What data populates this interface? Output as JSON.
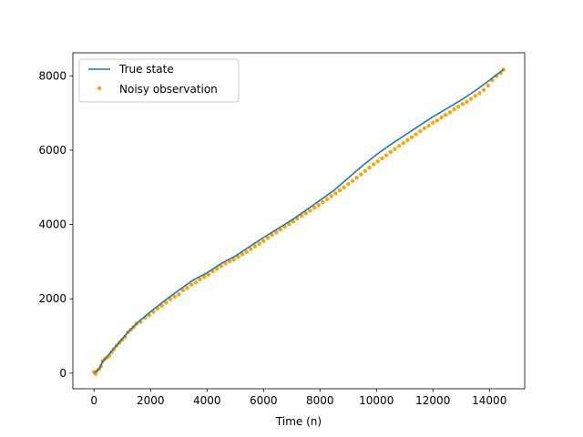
{
  "chart_data": {
    "type": "line",
    "title": "",
    "xlabel": "Time (n)",
    "ylabel": "",
    "xlim": [
      -750,
      15250
    ],
    "ylim": [
      -420,
      8620
    ],
    "xticks": [
      0,
      2000,
      4000,
      6000,
      8000,
      10000,
      12000,
      14000
    ],
    "yticks": [
      0,
      2000,
      4000,
      6000,
      8000
    ],
    "grid": false,
    "legend_position": "upper left",
    "series": [
      {
        "name": "True state",
        "kind": "line",
        "color": "#1f77b4",
        "x": [
          0,
          100,
          200,
          300,
          500,
          800,
          1200,
          1600,
          2000,
          2500,
          3000,
          3500,
          4000,
          4500,
          5000,
          5500,
          6000,
          6500,
          7000,
          7500,
          8000,
          8500,
          9000,
          9500,
          10000,
          10500,
          11000,
          11500,
          12000,
          12500,
          13000,
          13500,
          14000,
          14200,
          14500
        ],
        "y": [
          0,
          60,
          140,
          300,
          480,
          750,
          1100,
          1400,
          1650,
          1950,
          2230,
          2500,
          2700,
          2950,
          3150,
          3400,
          3650,
          3880,
          4120,
          4380,
          4650,
          4920,
          5250,
          5580,
          5880,
          6150,
          6400,
          6650,
          6900,
          7120,
          7350,
          7600,
          7880,
          8000,
          8170
        ]
      },
      {
        "name": "Noisy observation",
        "kind": "scatter",
        "color": "#ffa500",
        "x": [
          0,
          60,
          120,
          180,
          240,
          300,
          380,
          460,
          540,
          620,
          700,
          800,
          900,
          1000,
          1100,
          1200,
          1300,
          1400,
          1500,
          1650,
          1800,
          1950,
          2100,
          2250,
          2400,
          2550,
          2700,
          2850,
          3000,
          3150,
          3300,
          3450,
          3600,
          3750,
          3900,
          4050,
          4200,
          4350,
          4500,
          4650,
          4800,
          4950,
          5100,
          5250,
          5400,
          5550,
          5700,
          5850,
          6000,
          6150,
          6300,
          6450,
          6600,
          6750,
          6900,
          7050,
          7200,
          7350,
          7500,
          7650,
          7800,
          7950,
          8100,
          8250,
          8400,
          8550,
          8700,
          8850,
          9000,
          9150,
          9300,
          9450,
          9600,
          9750,
          9900,
          10050,
          10200,
          10350,
          10500,
          10650,
          10800,
          10950,
          11100,
          11250,
          11400,
          11550,
          11700,
          11850,
          12000,
          12150,
          12300,
          12450,
          12600,
          12750,
          12900,
          13050,
          13200,
          13350,
          13500,
          13650,
          13800,
          13950,
          14100,
          14250,
          14400,
          14500
        ],
        "y": [
          30,
          -20,
          70,
          110,
          190,
          320,
          380,
          420,
          470,
          560,
          640,
          740,
          820,
          900,
          980,
          1100,
          1170,
          1240,
          1330,
          1380,
          1490,
          1560,
          1650,
          1740,
          1810,
          1900,
          1990,
          2060,
          2120,
          2230,
          2290,
          2380,
          2440,
          2520,
          2590,
          2650,
          2740,
          2810,
          2880,
          2950,
          3010,
          3060,
          3130,
          3200,
          3260,
          3340,
          3410,
          3480,
          3560,
          3640,
          3720,
          3790,
          3860,
          3940,
          4010,
          4080,
          4160,
          4230,
          4300,
          4370,
          4450,
          4520,
          4600,
          4680,
          4760,
          4840,
          4920,
          5000,
          5090,
          5170,
          5260,
          5350,
          5440,
          5530,
          5620,
          5700,
          5780,
          5860,
          5950,
          6030,
          6110,
          6190,
          6270,
          6350,
          6430,
          6510,
          6590,
          6660,
          6740,
          6800,
          6880,
          6950,
          7020,
          7100,
          7170,
          7240,
          7300,
          7380,
          7460,
          7530,
          7620,
          7740,
          7880,
          7990,
          8080,
          8170
        ]
      }
    ]
  }
}
